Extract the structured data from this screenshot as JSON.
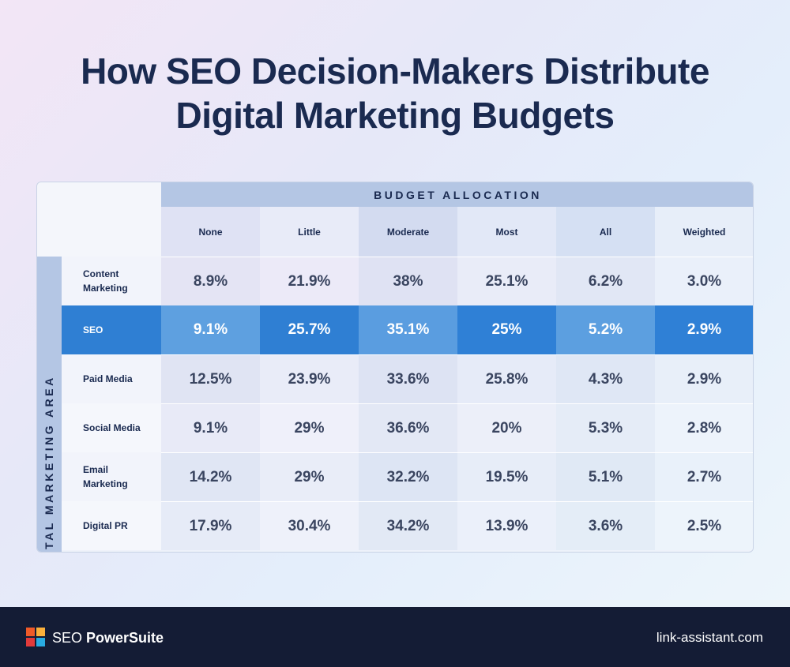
{
  "title_line1": "How SEO Decision-Makers Distribute",
  "title_line2": "Digital Marketing Budgets",
  "chart_data": {
    "type": "table",
    "column_group_label": "BUDGET ALLOCATION",
    "row_group_label": "DIGITAL MARKETING AREA",
    "columns": [
      "None",
      "Little",
      "Moderate",
      "Most",
      "All",
      "Weighted"
    ],
    "rows": [
      {
        "label": "Content Marketing",
        "values": [
          "8.9%",
          "21.9%",
          "38%",
          "25.1%",
          "6.2%",
          "3.0%"
        ]
      },
      {
        "label": "SEO",
        "values": [
          "9.1%",
          "25.7%",
          "35.1%",
          "25%",
          "5.2%",
          "2.9%"
        ],
        "highlighted": true
      },
      {
        "label": "Paid Media",
        "values": [
          "12.5%",
          "23.9%",
          "33.6%",
          "25.8%",
          "4.3%",
          "2.9%"
        ]
      },
      {
        "label": "Social Media",
        "values": [
          "9.1%",
          "29%",
          "36.6%",
          "20%",
          "5.3%",
          "2.8%"
        ]
      },
      {
        "label": "Email Marketing",
        "values": [
          "14.2%",
          "29%",
          "32.2%",
          "19.5%",
          "5.1%",
          "2.7%"
        ]
      },
      {
        "label": "Digital PR",
        "values": [
          "17.9%",
          "30.4%",
          "34.2%",
          "13.9%",
          "3.6%",
          "2.5%"
        ]
      }
    ]
  },
  "colors": {
    "title": "#1a2a50",
    "header_band": "#b4c6e4",
    "highlight_row": "#2f7fd3",
    "footer_bg": "#141c35"
  },
  "footer": {
    "brand_prefix": "SEO ",
    "brand_bold": "PowerSuite",
    "site": "link-assistant.com",
    "logo_icon": "seo-powersuite-logo-icon"
  }
}
